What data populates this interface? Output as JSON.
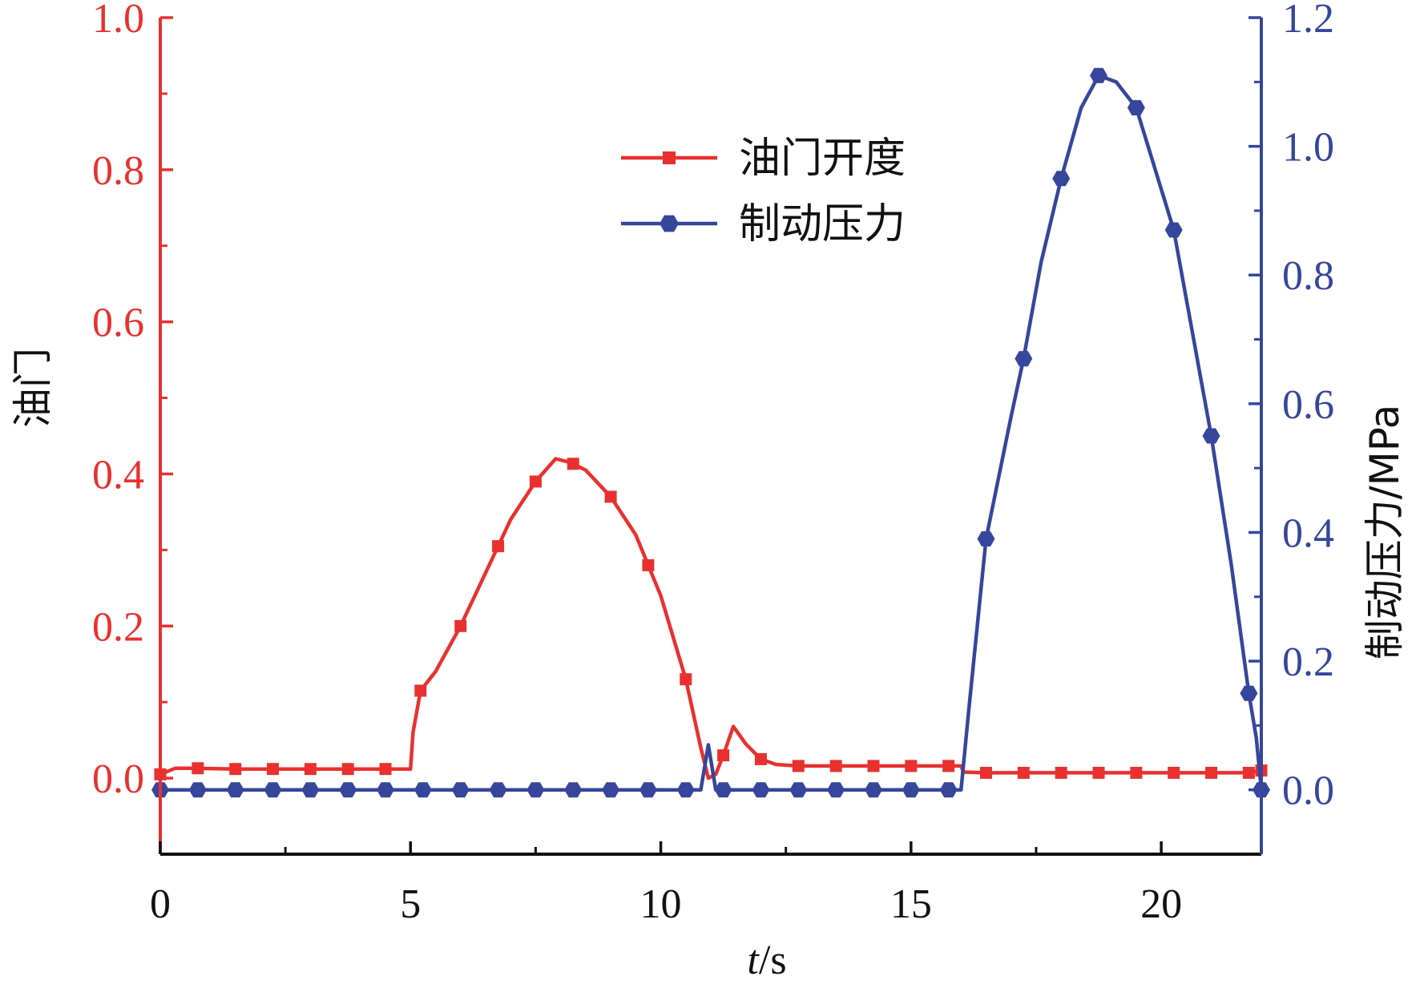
{
  "chart_data": {
    "type": "line",
    "x_axis": {
      "label": "t/s",
      "label_italic_part": "t",
      "label_rest": "/s",
      "range": [
        0,
        22
      ],
      "ticks": [
        0,
        5,
        10,
        15,
        20
      ],
      "tick_labels": [
        "0",
        "5",
        "10",
        "15",
        "20"
      ]
    },
    "y_axis_left": {
      "label": "油门",
      "color": "#e8312f",
      "range": [
        -0.1,
        1.0
      ],
      "ticks": [
        0.0,
        0.2,
        0.4,
        0.6,
        0.8,
        1.0
      ],
      "tick_labels": [
        "0.0",
        "0.2",
        "0.4",
        "0.6",
        "0.8",
        "1.0"
      ]
    },
    "y_axis_right": {
      "label": "制动压力/MPa",
      "color": "#36469b",
      "range": [
        -0.1,
        1.2
      ],
      "ticks": [
        0.0,
        0.2,
        0.4,
        0.6,
        0.8,
        1.0,
        1.2
      ],
      "tick_labels": [
        "0.0",
        "0.2",
        "0.4",
        "0.6",
        "0.8",
        "1.0",
        "1.2"
      ]
    },
    "legend": {
      "position": "top-center",
      "entries": [
        {
          "label": "油门开度",
          "marker": "square",
          "color": "#e8312f"
        },
        {
          "label": "制动压力",
          "marker": "hexagon",
          "color": "#36469b"
        }
      ]
    },
    "series": [
      {
        "name": "油门开度",
        "axis": "left",
        "color": "#e8312f",
        "marker": "square",
        "x": [
          0,
          0.3,
          0.75,
          1.5,
          2.25,
          3.0,
          3.75,
          4.5,
          5.0,
          5.05,
          5.2,
          5.5,
          6.0,
          6.5,
          7.0,
          7.5,
          7.9,
          8.2,
          8.5,
          9.0,
          9.5,
          10.0,
          10.5,
          10.8,
          10.95,
          11.1,
          11.25,
          11.45,
          11.7,
          12.0,
          12.3,
          12.75,
          13.5,
          14.25,
          15.0,
          15.75,
          16.0,
          16.05,
          16.5,
          17.25,
          18.0,
          18.75,
          19.5,
          20.25,
          21.0,
          21.75,
          22.0
        ],
        "y": [
          0.005,
          0.013,
          0.013,
          0.012,
          0.012,
          0.012,
          0.012,
          0.012,
          0.012,
          0.06,
          0.115,
          0.14,
          0.2,
          0.27,
          0.34,
          0.39,
          0.42,
          0.415,
          0.405,
          0.37,
          0.32,
          0.24,
          0.13,
          0.04,
          0.0,
          0.005,
          0.03,
          0.068,
          0.045,
          0.025,
          0.018,
          0.016,
          0.016,
          0.016,
          0.016,
          0.016,
          0.016,
          0.008,
          0.007,
          0.007,
          0.007,
          0.007,
          0.007,
          0.007,
          0.007,
          0.007,
          0.01
        ],
        "marker_x": [
          0,
          0.75,
          1.5,
          2.25,
          3.0,
          3.75,
          4.5,
          5.2,
          6.0,
          6.75,
          7.5,
          8.25,
          9.0,
          9.75,
          10.5,
          11.25,
          12.0,
          12.75,
          13.5,
          14.25,
          15.0,
          15.75,
          16.5,
          17.25,
          18.0,
          18.75,
          19.5,
          20.25,
          21.0,
          21.75,
          22.0
        ]
      },
      {
        "name": "制动压力",
        "axis": "right",
        "color": "#36469b",
        "marker": "hexagon",
        "x": [
          0,
          0.75,
          1.5,
          2.25,
          3.0,
          3.75,
          4.5,
          5.25,
          6.0,
          6.75,
          7.5,
          8.25,
          9.0,
          9.75,
          10.5,
          10.8,
          10.95,
          11.1,
          11.25,
          12.0,
          12.75,
          13.5,
          14.25,
          15.0,
          15.75,
          16.0,
          16.15,
          16.5,
          17.0,
          17.25,
          17.6,
          18.0,
          18.4,
          18.75,
          19.1,
          19.5,
          20.25,
          21.0,
          21.4,
          21.75,
          21.9,
          22.0
        ],
        "y": [
          0.0,
          0.0,
          0.0,
          0.0,
          0.0,
          0.0,
          0.0,
          0.0,
          0.0,
          0.0,
          0.0,
          0.0,
          0.0,
          0.0,
          0.0,
          0.0,
          0.07,
          0.0,
          0.0,
          0.0,
          0.0,
          0.0,
          0.0,
          0.0,
          0.0,
          0.0,
          0.12,
          0.39,
          0.58,
          0.67,
          0.82,
          0.95,
          1.06,
          1.11,
          1.1,
          1.06,
          0.87,
          0.55,
          0.35,
          0.15,
          0.08,
          0.0
        ],
        "marker_x": [
          0,
          0.75,
          1.5,
          2.25,
          3.0,
          3.75,
          4.5,
          5.25,
          6.0,
          6.75,
          7.5,
          8.25,
          9.0,
          9.75,
          10.5,
          11.25,
          12.0,
          12.75,
          13.5,
          14.25,
          15.0,
          15.75,
          16.5,
          17.25,
          18.0,
          18.75,
          19.5,
          20.25,
          21.0,
          21.75,
          22.0
        ]
      }
    ]
  }
}
